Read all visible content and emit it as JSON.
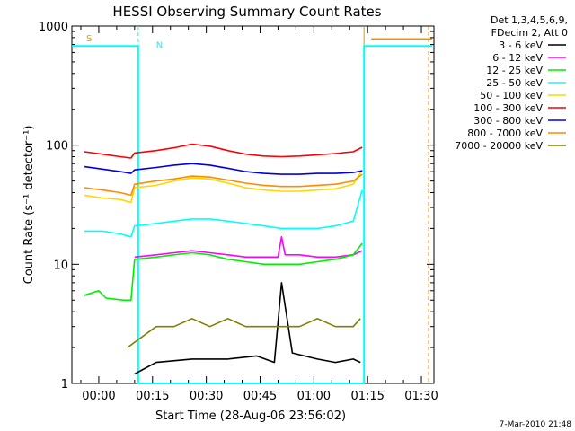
{
  "chart_data": {
    "type": "line",
    "title": "HESSI Observing Summary Count Rates",
    "xlabel": "Start Time (28-Aug-06 23:56:02)",
    "ylabel": "Count Rate (s⁻¹ detector⁻¹)",
    "x_unit": "minutes since start",
    "xlim": [
      -3.5,
      97.5
    ],
    "ylim": [
      1,
      1000
    ],
    "yscale": "log",
    "grid": false,
    "legend_position": "outside-right",
    "x_ticks": [
      {
        "value": 4,
        "label": "00:00"
      },
      {
        "value": 19,
        "label": "00:15"
      },
      {
        "value": 34,
        "label": "00:30"
      },
      {
        "value": 49,
        "label": "00:45"
      },
      {
        "value": 64,
        "label": "01:00"
      },
      {
        "value": 79,
        "label": "01:15"
      },
      {
        "value": 94,
        "label": "01:30"
      }
    ],
    "y_ticks": [
      {
        "value": 1,
        "label": "1"
      },
      {
        "value": 10,
        "label": "10"
      },
      {
        "value": 100,
        "label": "100"
      },
      {
        "value": 1000,
        "label": "1000"
      }
    ],
    "legend_header": [
      "Det 1,3,4,5,6,9,",
      "FDecim 2, Att 0"
    ],
    "series": [
      {
        "name": "3 - 6 keV",
        "color": "#000000",
        "x": [
          14,
          20,
          30,
          40,
          48,
          53,
          55,
          58,
          65,
          70,
          75,
          77
        ],
        "y": [
          1.2,
          1.5,
          1.6,
          1.6,
          1.7,
          1.5,
          7.0,
          1.8,
          1.6,
          1.5,
          1.6,
          1.5
        ]
      },
      {
        "name": "6 - 12 keV",
        "color": "#ff00ff",
        "x": [
          14,
          20,
          25,
          30,
          35,
          40,
          45,
          50,
          54,
          55,
          56,
          60,
          65,
          70,
          75,
          77.5
        ],
        "y": [
          11.5,
          12,
          12.5,
          13,
          12.5,
          12,
          11.5,
          11.5,
          11.5,
          17,
          12,
          12,
          11.5,
          11.5,
          12,
          13
        ]
      },
      {
        "name": "12 - 25 keV",
        "color": "#00ee00",
        "x": [
          0,
          4,
          6,
          11,
          13,
          14,
          20,
          25,
          30,
          35,
          40,
          45,
          50,
          55,
          60,
          65,
          70,
          75,
          77.5
        ],
        "y": [
          5.5,
          6,
          5.2,
          5,
          5,
          11,
          11.5,
          12,
          12.5,
          12,
          11,
          10.5,
          10,
          10,
          10,
          10.5,
          11,
          12,
          15
        ]
      },
      {
        "name": "25 - 50 keV",
        "color": "#00ffff",
        "x": [
          0,
          5,
          10,
          13,
          14,
          20,
          25,
          30,
          35,
          40,
          45,
          50,
          55,
          60,
          65,
          70,
          75,
          77.5
        ],
        "y": [
          19,
          19,
          18,
          17,
          21,
          22,
          23,
          24,
          24,
          23,
          22,
          21,
          20,
          20,
          20,
          21,
          23,
          42
        ]
      },
      {
        "name": "50 - 100 keV",
        "color": "#ffd700",
        "x": [
          0,
          5,
          10,
          13,
          14,
          20,
          25,
          30,
          35,
          40,
          45,
          50,
          55,
          60,
          65,
          70,
          75,
          77.5
        ],
        "y": [
          38,
          36,
          35,
          33,
          44,
          46,
          50,
          53,
          52,
          48,
          44,
          42,
          41,
          41,
          42,
          43,
          47,
          62
        ]
      },
      {
        "name": "100 - 300 keV",
        "color": "#ff0000",
        "x": [
          0,
          5,
          10,
          13,
          14,
          20,
          25,
          30,
          35,
          40,
          45,
          50,
          55,
          60,
          65,
          70,
          75,
          77.5
        ],
        "y": [
          88,
          84,
          80,
          78,
          86,
          90,
          95,
          102,
          98,
          90,
          84,
          81,
          80,
          81,
          83,
          85,
          88,
          96
        ]
      },
      {
        "name": "300 - 800 keV",
        "color": "#0000dd",
        "x": [
          0,
          5,
          10,
          13,
          14,
          20,
          25,
          30,
          35,
          40,
          45,
          50,
          55,
          60,
          65,
          70,
          75,
          77.5
        ],
        "y": [
          66,
          63,
          60,
          58,
          62,
          65,
          68,
          70,
          68,
          64,
          60,
          58,
          57,
          57,
          58,
          58,
          59,
          61
        ]
      },
      {
        "name": "800 - 7000 keV",
        "color": "#ff8c00",
        "x": [
          0,
          5,
          10,
          13,
          14,
          20,
          25,
          30,
          35,
          40,
          45,
          50,
          55,
          60,
          65,
          70,
          75,
          77.5,
          79,
          80,
          97
        ],
        "y": [
          44,
          42,
          40,
          38,
          47,
          50,
          52,
          55,
          54,
          51,
          48,
          46,
          45,
          45,
          46,
          47,
          50,
          57,
          null,
          780,
          780
        ]
      },
      {
        "name": "7000 - 20000 keV",
        "color": "#808000",
        "x": [
          12,
          20,
          25,
          30,
          35,
          40,
          45,
          50,
          55,
          60,
          65,
          70,
          75,
          77
        ],
        "y": [
          2.0,
          3.0,
          3.0,
          3.5,
          3.0,
          3.5,
          3.0,
          3.0,
          3.0,
          3.0,
          3.5,
          3.0,
          3.0,
          3.5
        ]
      }
    ],
    "annotations": [
      {
        "text": "S",
        "x": 0,
        "y": 800,
        "color": "#ff8c00"
      },
      {
        "text": "N",
        "x": 19.5,
        "y": 700,
        "color": "#00ffff"
      }
    ],
    "observing_state_line": {
      "color": "#00ffff",
      "x": [
        -3.5,
        15,
        15,
        78,
        78,
        97
      ],
      "y": [
        680,
        680,
        1,
        1,
        680,
        680
      ]
    },
    "vertical_markers": [
      {
        "x": 15,
        "color": "#00ffff",
        "style": "dashed"
      },
      {
        "x": 78,
        "color": "#ff8c00",
        "style": "solid"
      },
      {
        "x": 96,
        "color": "#ff8c00",
        "style": "dashed"
      }
    ],
    "footer": "7-Mar-2010 21:48"
  }
}
